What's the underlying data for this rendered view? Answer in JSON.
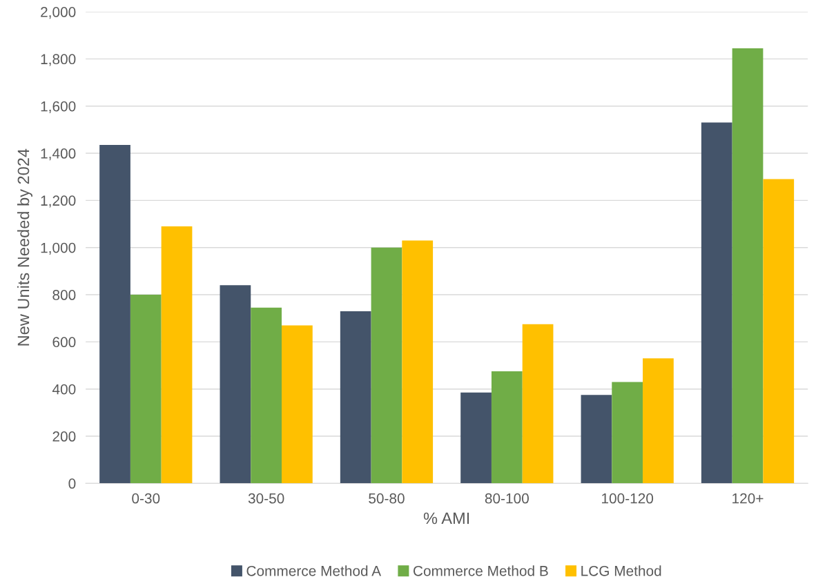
{
  "chart_data": {
    "type": "bar",
    "xlabel": "% AMI",
    "ylabel": "New Units Needed by 2024",
    "categories": [
      "0-30",
      "30-50",
      "50-80",
      "80-100",
      "100-120",
      "120+"
    ],
    "series": [
      {
        "name": "Commerce Method A",
        "color": "#44546a",
        "values": [
          1435,
          840,
          730,
          385,
          375,
          1530
        ]
      },
      {
        "name": "Commerce Method B",
        "color": "#70ad47",
        "values": [
          800,
          745,
          1000,
          475,
          430,
          1845
        ]
      },
      {
        "name": "LCG Method",
        "color": "#ffc000",
        "values": [
          1090,
          670,
          1030,
          675,
          530,
          1290
        ]
      }
    ],
    "ylim": [
      0,
      2000
    ],
    "yticks": [
      {
        "value": 0,
        "label": "0"
      },
      {
        "value": 200,
        "label": "200"
      },
      {
        "value": 400,
        "label": "400"
      },
      {
        "value": 600,
        "label": "600"
      },
      {
        "value": 800,
        "label": "800"
      },
      {
        "value": 1000,
        "label": "1,000"
      },
      {
        "value": 1200,
        "label": "1,200"
      },
      {
        "value": 1400,
        "label": "1,400"
      },
      {
        "value": 1600,
        "label": "1,600"
      },
      {
        "value": 1800,
        "label": "1,800"
      },
      {
        "value": 2000,
        "label": "2,000"
      }
    ],
    "grid": "y",
    "legend": "bottom"
  }
}
